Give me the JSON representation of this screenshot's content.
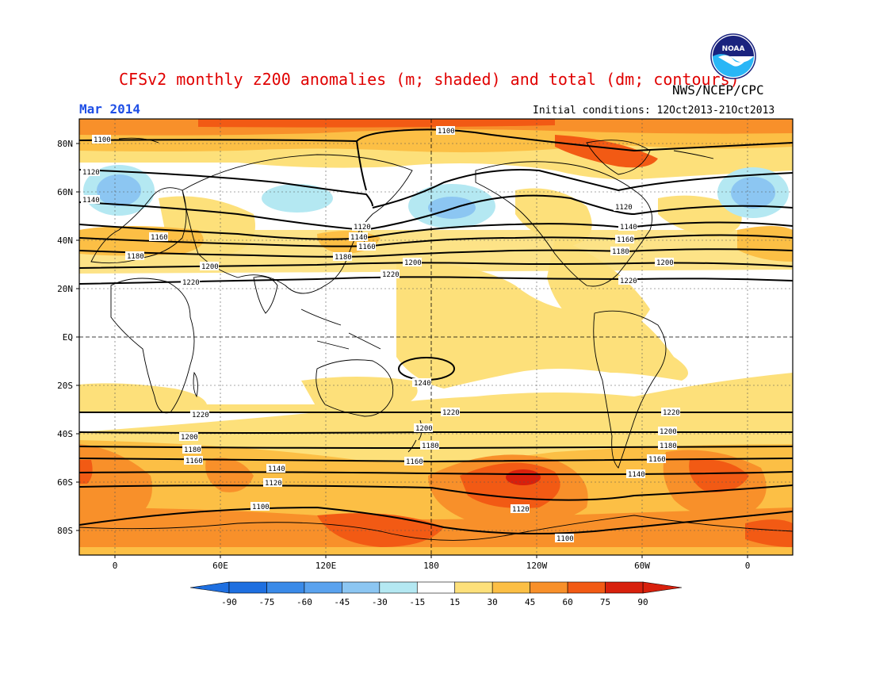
{
  "header": {
    "title": "CFSv2 monthly z200 anomalies (m; shaded) and total (dm; contours)",
    "agency": "NWS/NCEP/CPC",
    "valid_month": "Mar 2014",
    "initial_conditions": "Initial conditions: 12Oct2013-21Oct2013",
    "logo_text": "NOAA"
  },
  "map": {
    "lat_labels": [
      "80N",
      "60N",
      "40N",
      "20N",
      "EQ",
      "20S",
      "40S",
      "60S",
      "80S"
    ],
    "lon_labels": [
      "0",
      "60E",
      "120E",
      "180",
      "120W",
      "60W",
      "0"
    ]
  },
  "colorbar": {
    "ticks": [
      "-90",
      "-75",
      "-60",
      "-45",
      "-30",
      "-15",
      "15",
      "30",
      "45",
      "60",
      "75",
      "90"
    ],
    "colors": [
      "#1e6fe0",
      "#3a8ae8",
      "#5aa2ee",
      "#8cc6f2",
      "#b4e8f2",
      "#ffffff",
      "#fde07a",
      "#fcbf45",
      "#f8902a",
      "#f25a14",
      "#d8200c"
    ]
  },
  "contour_labels": {
    "c1100": "1100",
    "c1120": "1120",
    "c1140": "1140",
    "c1160": "1160",
    "c1180": "1180",
    "c1200": "1200",
    "c1220": "1220",
    "c1240": "1240"
  }
}
